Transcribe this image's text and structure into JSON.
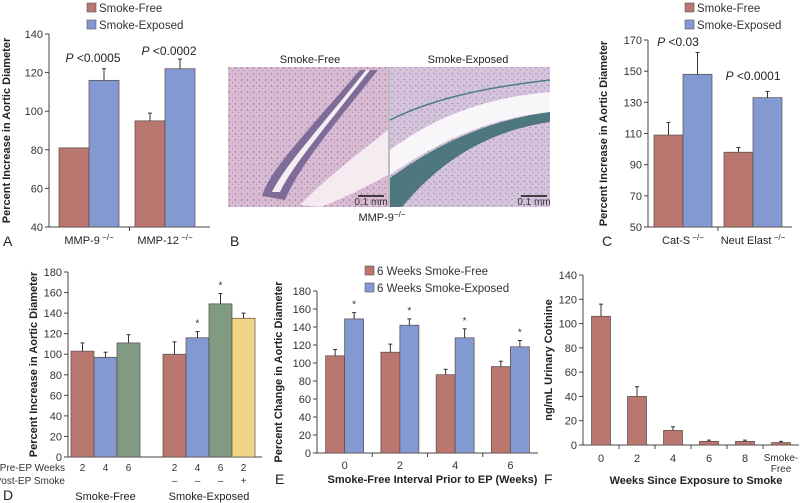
{
  "colors": {
    "smoke_free": "#b9776f",
    "smoke_exposed": "#8299d1",
    "green": "#809b81",
    "yellow": "#efd585",
    "axis": "#444444"
  },
  "panel_b": {
    "letter": "B",
    "left_title": "Smoke-Free",
    "right_title": "Smoke-Exposed",
    "scale_bar_left": "0.1 mm",
    "scale_bar_right": "0.1 mm",
    "genotype_label": "MMP-9",
    "genotype_sup": "−/−"
  },
  "chart_data": [
    {
      "id": "A",
      "type": "bar",
      "letter": "A",
      "title": "",
      "ylabel": "Percent Increase in Aortic Diameter",
      "xlabel": "",
      "ylim": [
        40,
        140
      ],
      "yticks": [
        40,
        60,
        80,
        100,
        120,
        140
      ],
      "categories": [
        "MMP-9",
        "MMP-12"
      ],
      "category_sup": "−/−",
      "legend": [
        "Smoke-Free",
        "Smoke-Exposed"
      ],
      "legend_position": "top-left",
      "series": [
        {
          "name": "Smoke-Free",
          "values": [
            81,
            95
          ],
          "errors": [
            0,
            4
          ]
        },
        {
          "name": "Smoke-Exposed",
          "values": [
            116,
            122
          ],
          "errors": [
            6,
            5
          ]
        }
      ],
      "annotations": [
        {
          "text_italic": "P",
          "text": " <0.0005",
          "category": 0
        },
        {
          "text_italic": "P",
          "text": " <0.0002",
          "category": 1
        }
      ]
    },
    {
      "id": "C",
      "type": "bar",
      "letter": "C",
      "title": "",
      "ylabel": "Percent Increase in Aortic Diameter",
      "xlabel": "",
      "ylim": [
        50,
        170
      ],
      "yticks": [
        50,
        70,
        90,
        110,
        130,
        150,
        170
      ],
      "categories": [
        "Cat-S",
        "Neut Elast"
      ],
      "category_sup": "−/−",
      "legend": [
        "Smoke-Free",
        "Smoke-Exposed"
      ],
      "legend_position": "top-right",
      "series": [
        {
          "name": "Smoke-Free",
          "values": [
            109,
            98
          ],
          "errors": [
            8,
            3
          ]
        },
        {
          "name": "Smoke-Exposed",
          "values": [
            148,
            133
          ],
          "errors": [
            14,
            4
          ]
        }
      ],
      "annotations": [
        {
          "text_italic": "P",
          "text": " <0.03",
          "category": 0
        },
        {
          "text_italic": "P",
          "text": " <0.0001",
          "category": 1
        }
      ]
    },
    {
      "id": "D",
      "type": "bar",
      "letter": "D",
      "ylabel": "Percent Increase in Aortic Diameter",
      "ylim": [
        0,
        180
      ],
      "yticks": [
        0,
        20,
        40,
        60,
        80,
        100,
        120,
        140,
        160,
        180
      ],
      "row_labels": [
        "Pre-EP Weeks",
        "Post-EP Smoke"
      ],
      "groups": [
        {
          "name": "Smoke-Free",
          "bars": [
            {
              "pre_ep_weeks": "2",
              "post_ep_smoke": "",
              "value": 103,
              "error": 8,
              "color": "smoke_free",
              "star": false
            },
            {
              "pre_ep_weeks": "4",
              "post_ep_smoke": "",
              "value": 97,
              "error": 5,
              "color": "smoke_exposed",
              "star": false
            },
            {
              "pre_ep_weeks": "6",
              "post_ep_smoke": "",
              "value": 111,
              "error": 8,
              "color": "green",
              "star": false
            }
          ]
        },
        {
          "name": "Smoke-Exposed",
          "bars": [
            {
              "pre_ep_weeks": "2",
              "post_ep_smoke": "–",
              "value": 100,
              "error": 12,
              "color": "smoke_free",
              "star": false
            },
            {
              "pre_ep_weeks": "4",
              "post_ep_smoke": "–",
              "value": 116,
              "error": 6,
              "color": "smoke_exposed",
              "star": true
            },
            {
              "pre_ep_weeks": "6",
              "post_ep_smoke": "–",
              "value": 149,
              "error": 10,
              "color": "green",
              "star": true
            },
            {
              "pre_ep_weeks": "2",
              "post_ep_smoke": "+",
              "value": 135,
              "error": 5,
              "color": "yellow",
              "star": false
            }
          ]
        }
      ],
      "star_symbol": "*"
    },
    {
      "id": "E",
      "type": "bar",
      "letter": "E",
      "ylabel": "Percent Change in Aortic Diameter",
      "xlabel": "Smoke-Free Interval Prior to EP (Weeks)",
      "ylim": [
        0,
        180
      ],
      "yticks": [
        0,
        20,
        40,
        60,
        80,
        100,
        120,
        140,
        160,
        180
      ],
      "categories": [
        "0",
        "2",
        "4",
        "6"
      ],
      "legend": [
        "6 Weeks Smoke-Free",
        "6 Weeks Smoke-Exposed"
      ],
      "legend_position": "top-right",
      "series": [
        {
          "name": "6 Weeks Smoke-Free",
          "values": [
            108,
            112,
            87,
            96
          ],
          "errors": [
            7,
            9,
            6,
            6
          ]
        },
        {
          "name": "6 Weeks Smoke-Exposed",
          "values": [
            149,
            142,
            128,
            118
          ],
          "errors": [
            7,
            7,
            10,
            7
          ]
        }
      ],
      "star_symbol": "*",
      "stars_on_series": "6 Weeks Smoke-Exposed"
    },
    {
      "id": "F",
      "type": "bar",
      "letter": "F",
      "ylabel": "ng/mL Urinary Cotinine",
      "xlabel": "Weeks Since Exposure to Smoke",
      "ylim": [
        0,
        140
      ],
      "yticks": [
        0,
        20,
        40,
        60,
        80,
        100,
        120,
        140
      ],
      "categories": [
        "0",
        "2",
        "4",
        "6",
        "8",
        "Smoke-Free"
      ],
      "values": [
        106,
        40,
        12,
        3,
        3,
        2
      ],
      "errors": [
        10,
        8,
        3,
        1,
        1,
        1
      ]
    }
  ]
}
